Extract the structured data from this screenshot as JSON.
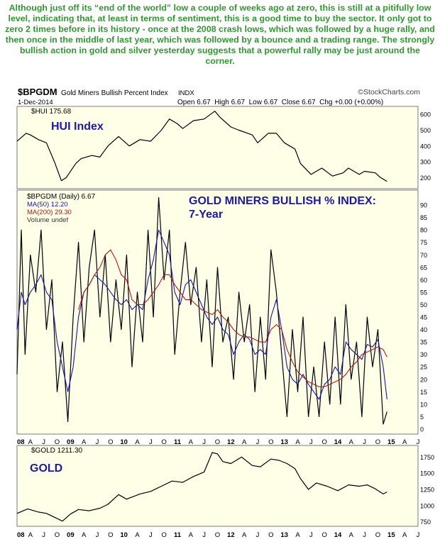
{
  "commentary": "Although just off its “end of the world” low a couple of weeks ago at zero, this is still at a pitifully low level, indicating that, at least in terms of sentiment, this is a good time to buy the sector. It only got to zero 2 times before in its history - once at the 2008 crash lows, which was followed by a huge rally, and then once in the middle of last year, which was followed by a bounce and a trading range. The strongly bullish action in gold and silver yesterday suggests that a powerful rally may be just around the corner.",
  "header": {
    "symbol": "$BPGDM",
    "description": "Gold Miners Bullish Percent Index",
    "exchange": "INDX",
    "date": "1-Dec-2014",
    "ohlc": "Open 6.67  High 6.67  Low 6.67  Close 6.67  Chg +0.00 (+0.00%)",
    "logo": "©StockCharts.com"
  },
  "colors": {
    "panel_bg": "#ffffe8",
    "grid": "#c8c8c8",
    "price": "#000000",
    "ma50": "#1515a8",
    "ma200": "#b81616",
    "annotation": "#1a1aa8",
    "commentary": "#2e9a2e"
  },
  "panels": {
    "hui": {
      "legend": "$HUI 175.68",
      "title": "HUI Index"
    },
    "bpgdm": {
      "legend": "$BPGDM (Daily) 6.67",
      "ma50": "MA(50) 12.20",
      "ma200": "MA(200) 29.30",
      "volume": "Volume undef",
      "title_line1": "GOLD MINERS BULLISH % INDEX:",
      "title_line2": "7-Year"
    },
    "gold": {
      "legend": "$GOLD 1211.30",
      "title": "GOLD"
    }
  },
  "axis": {
    "months": [
      "08",
      "A",
      "J",
      "O",
      "09",
      "A",
      "J",
      "O",
      "10",
      "A",
      "J",
      "O",
      "11",
      "A",
      "J",
      "O",
      "12",
      "A",
      "J",
      "O",
      "13",
      "A",
      "J",
      "O",
      "14",
      "A",
      "J",
      "O",
      "15",
      "A",
      "J"
    ],
    "x_range": [
      2008.0,
      2015.5
    ]
  },
  "chart_data": [
    {
      "type": "line",
      "title": "$HUI",
      "ylim": [
        130,
        650
      ],
      "yticks": [
        200,
        300,
        400,
        500,
        600
      ],
      "x": [
        2008.0,
        2008.17,
        2008.25,
        2008.4,
        2008.55,
        2008.7,
        2008.83,
        2008.92,
        2009.1,
        2009.2,
        2009.4,
        2009.55,
        2009.7,
        2009.9,
        2010.1,
        2010.3,
        2010.5,
        2010.7,
        2010.85,
        2011.0,
        2011.1,
        2011.3,
        2011.5,
        2011.7,
        2011.8,
        2012.0,
        2012.15,
        2012.4,
        2012.5,
        2012.7,
        2012.85,
        2013.0,
        2013.2,
        2013.3,
        2013.5,
        2013.7,
        2013.9,
        2014.1,
        2014.2,
        2014.4,
        2014.5,
        2014.7,
        2014.8,
        2014.92
      ],
      "series": [
        {
          "values": [
            430,
            480,
            470,
            440,
            420,
            300,
            180,
            200,
            290,
            320,
            340,
            330,
            400,
            460,
            400,
            440,
            430,
            500,
            570,
            540,
            510,
            560,
            570,
            620,
            580,
            520,
            500,
            470,
            420,
            480,
            480,
            420,
            380,
            290,
            220,
            260,
            210,
            230,
            260,
            220,
            240,
            230,
            200,
            176
          ]
        }
      ]
    },
    {
      "type": "line",
      "title": "$BPGDM (Daily)",
      "ylim": [
        -2,
        96
      ],
      "yticks": [
        0,
        5,
        10,
        15,
        20,
        25,
        30,
        35,
        40,
        45,
        50,
        55,
        60,
        65,
        70,
        75,
        80,
        85,
        90
      ],
      "x": [
        2008.0,
        2008.08,
        2008.15,
        2008.25,
        2008.35,
        2008.45,
        2008.55,
        2008.65,
        2008.75,
        2008.85,
        2008.95,
        2009.05,
        2009.15,
        2009.25,
        2009.35,
        2009.45,
        2009.55,
        2009.65,
        2009.75,
        2009.85,
        2009.95,
        2010.05,
        2010.15,
        2010.25,
        2010.35,
        2010.45,
        2010.55,
        2010.65,
        2010.75,
        2010.85,
        2010.95,
        2011.05,
        2011.15,
        2011.25,
        2011.35,
        2011.45,
        2011.55,
        2011.65,
        2011.75,
        2011.85,
        2011.95,
        2012.05,
        2012.15,
        2012.25,
        2012.35,
        2012.45,
        2012.55,
        2012.65,
        2012.75,
        2012.85,
        2012.95,
        2013.05,
        2013.15,
        2013.25,
        2013.35,
        2013.45,
        2013.55,
        2013.65,
        2013.75,
        2013.85,
        2013.95,
        2014.05,
        2014.15,
        2014.25,
        2014.35,
        2014.45,
        2014.55,
        2014.65,
        2014.75,
        2014.85,
        2014.92
      ],
      "series": [
        {
          "name": "$BPGDM",
          "values": [
            22,
            80,
            30,
            70,
            55,
            80,
            40,
            60,
            15,
            35,
            3,
            45,
            75,
            35,
            65,
            80,
            45,
            70,
            35,
            60,
            40,
            70,
            25,
            55,
            35,
            80,
            45,
            93,
            60,
            80,
            30,
            55,
            75,
            50,
            65,
            35,
            60,
            25,
            65,
            35,
            45,
            20,
            55,
            35,
            50,
            15,
            45,
            20,
            72,
            55,
            30,
            5,
            40,
            15,
            45,
            5,
            25,
            5,
            35,
            10,
            45,
            10,
            50,
            20,
            35,
            5,
            45,
            25,
            40,
            2,
            7
          ]
        },
        {
          "name": "MA(50)",
          "values": [
            40,
            55,
            50,
            55,
            58,
            62,
            55,
            52,
            35,
            25,
            15,
            25,
            45,
            55,
            58,
            62,
            60,
            58,
            55,
            52,
            50,
            52,
            48,
            50,
            48,
            60,
            68,
            80,
            75,
            70,
            55,
            50,
            58,
            60,
            55,
            50,
            45,
            42,
            45,
            40,
            38,
            30,
            35,
            38,
            36,
            30,
            32,
            30,
            45,
            52,
            40,
            25,
            20,
            18,
            22,
            18,
            15,
            12,
            18,
            20,
            25,
            22,
            35,
            32,
            30,
            28,
            34,
            33,
            36,
            25,
            12
          ]
        },
        {
          "name": "MA(200)",
          "values": [
            null,
            null,
            null,
            null,
            null,
            null,
            null,
            null,
            null,
            null,
            null,
            null,
            48,
            55,
            58,
            62,
            65,
            70,
            72,
            68,
            62,
            60,
            52,
            50,
            50,
            52,
            55,
            58,
            62,
            62,
            58,
            55,
            52,
            52,
            50,
            48,
            47,
            46,
            48,
            45,
            43,
            40,
            38,
            37,
            37,
            36,
            35,
            35,
            40,
            42,
            40,
            32,
            27,
            23,
            21,
            19,
            18,
            17,
            17,
            18,
            19,
            20,
            22,
            25,
            27,
            30,
            31,
            32,
            33,
            32,
            29
          ]
        }
      ]
    },
    {
      "type": "line",
      "title": "$GOLD",
      "ylim": [
        680,
        1930
      ],
      "yticks": [
        750,
        1000,
        1250,
        1500,
        1750
      ],
      "x": [
        2008.0,
        2008.2,
        2008.4,
        2008.55,
        2008.7,
        2008.85,
        2009.0,
        2009.15,
        2009.35,
        2009.55,
        2009.7,
        2009.9,
        2010.05,
        2010.3,
        2010.5,
        2010.7,
        2010.9,
        2011.1,
        2011.3,
        2011.5,
        2011.65,
        2011.75,
        2011.85,
        2012.0,
        2012.2,
        2012.4,
        2012.55,
        2012.75,
        2012.9,
        2013.05,
        2013.2,
        2013.3,
        2013.45,
        2013.6,
        2013.8,
        2014.0,
        2014.2,
        2014.4,
        2014.55,
        2014.7,
        2014.85,
        2014.92
      ],
      "series": [
        {
          "values": [
            880,
            950,
            900,
            880,
            820,
            760,
            870,
            940,
            920,
            960,
            1020,
            1170,
            1100,
            1180,
            1220,
            1300,
            1380,
            1360,
            1450,
            1520,
            1820,
            1800,
            1680,
            1650,
            1750,
            1620,
            1600,
            1720,
            1700,
            1650,
            1570,
            1420,
            1250,
            1350,
            1300,
            1230,
            1320,
            1300,
            1320,
            1260,
            1180,
            1211
          ]
        }
      ]
    }
  ]
}
